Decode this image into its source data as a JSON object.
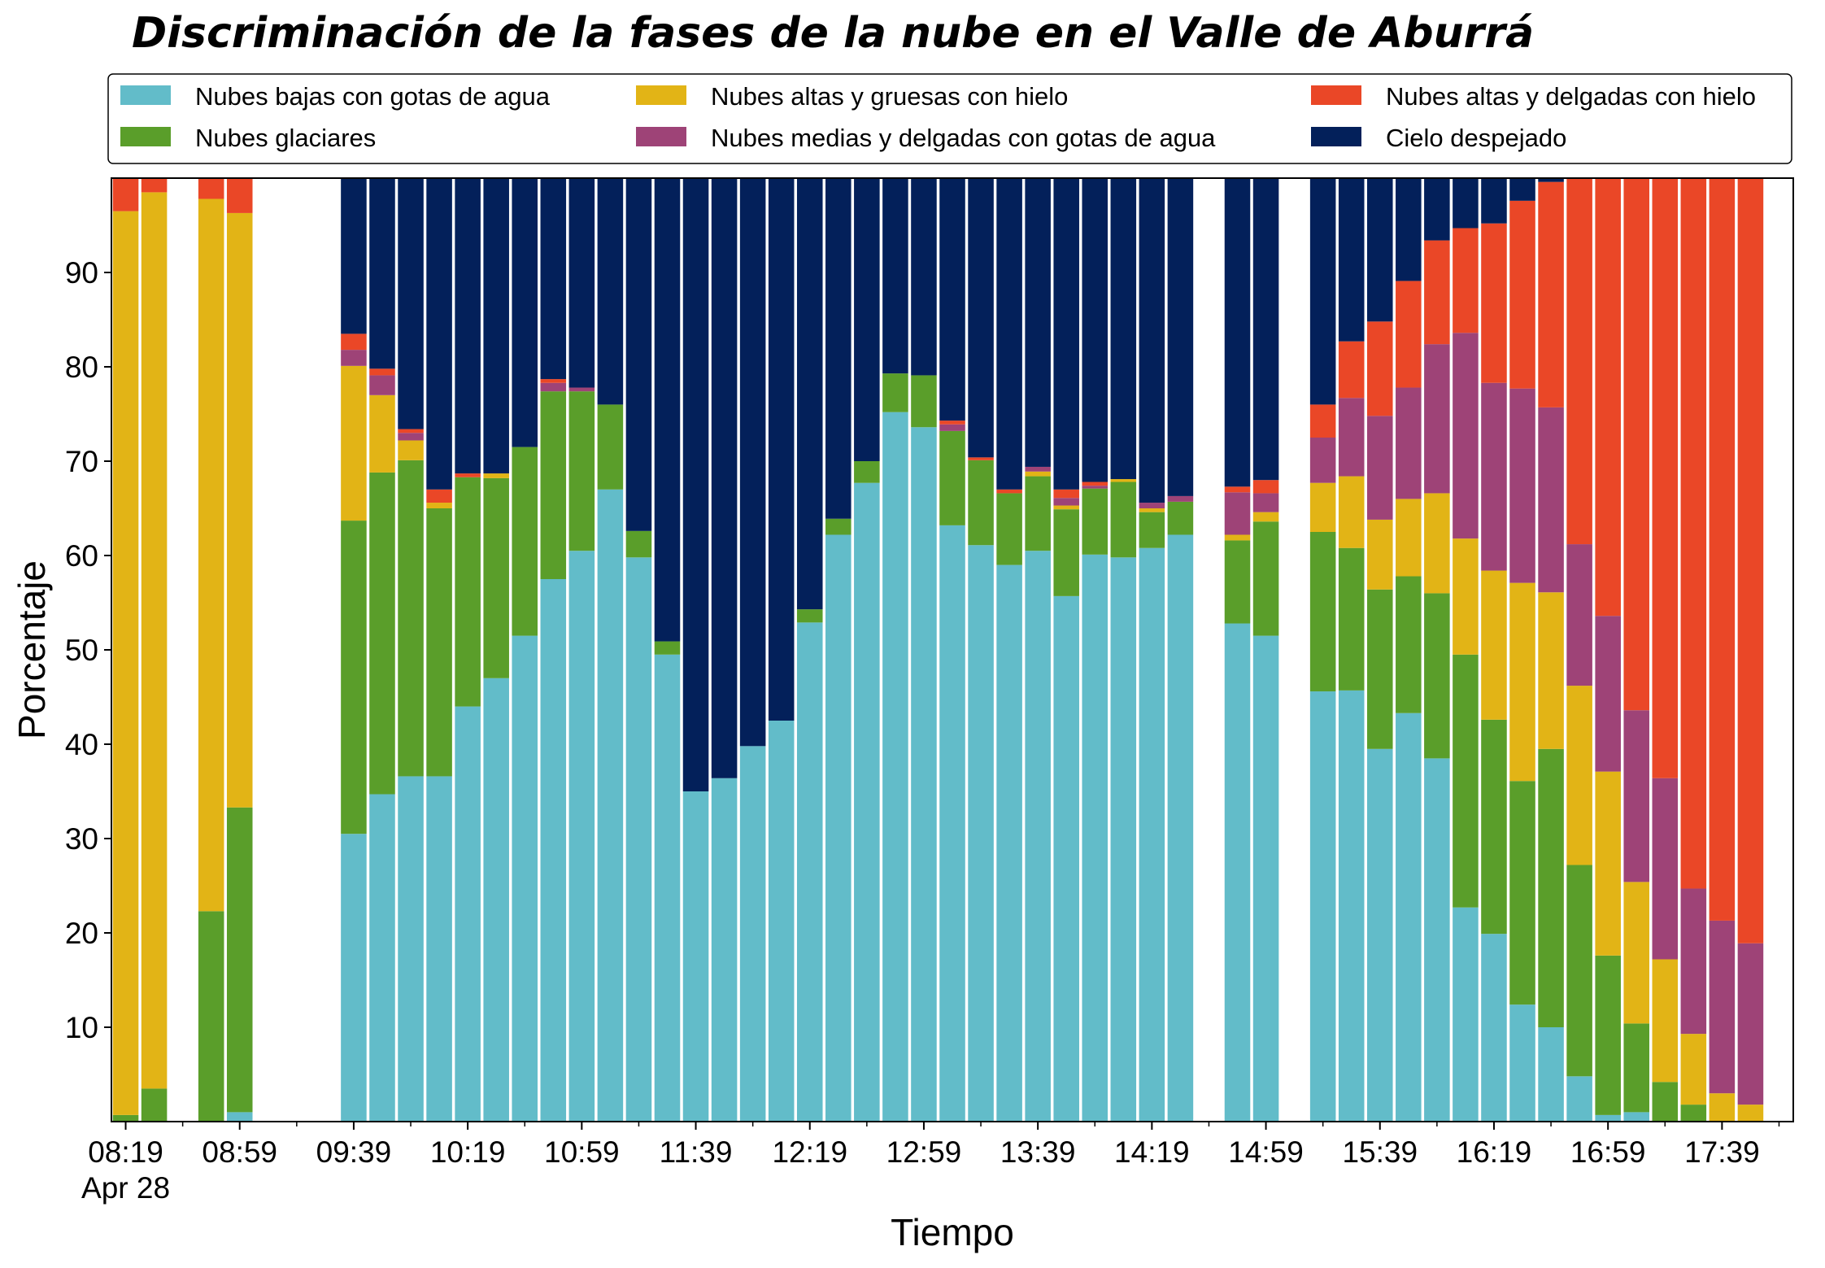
{
  "chart_data": {
    "type": "bar",
    "stacked": true,
    "title": "Discriminación de la fases de la nube en el Valle de Aburrá",
    "xlabel": "Tiempo",
    "ylabel": "Porcentaje",
    "ylim": [
      0,
      100
    ],
    "yticks": [
      10,
      20,
      30,
      40,
      50,
      60,
      70,
      80,
      90
    ],
    "xlim": [
      "08:14",
      "18:04"
    ],
    "bar_interval_minutes": 10,
    "xticks": [
      {
        "time": "08:19",
        "label": "08:19",
        "sublabel": "Apr 28"
      },
      {
        "time": "08:59",
        "label": "08:59"
      },
      {
        "time": "09:39",
        "label": "09:39"
      },
      {
        "time": "10:19",
        "label": "10:19"
      },
      {
        "time": "10:59",
        "label": "10:59"
      },
      {
        "time": "11:39",
        "label": "11:39"
      },
      {
        "time": "12:19",
        "label": "12:19"
      },
      {
        "time": "12:59",
        "label": "12:59"
      },
      {
        "time": "13:39",
        "label": "13:39"
      },
      {
        "time": "14:19",
        "label": "14:19"
      },
      {
        "time": "14:59",
        "label": "14:59"
      },
      {
        "time": "15:39",
        "label": "15:39"
      },
      {
        "time": "16:19",
        "label": "16:19"
      },
      {
        "time": "16:59",
        "label": "16:59"
      },
      {
        "time": "17:39",
        "label": "17:39"
      }
    ],
    "legend_position": "top, above plot, 3 columns",
    "grid": false,
    "times": [
      "08:19",
      "08:29",
      "08:49",
      "08:59",
      "09:39",
      "09:49",
      "09:59",
      "10:09",
      "10:19",
      "10:29",
      "10:39",
      "10:49",
      "10:59",
      "11:09",
      "11:19",
      "11:29",
      "11:39",
      "11:49",
      "11:59",
      "12:09",
      "12:19",
      "12:29",
      "12:39",
      "12:49",
      "12:59",
      "13:09",
      "13:19",
      "13:29",
      "13:39",
      "13:49",
      "13:59",
      "14:09",
      "14:19",
      "14:29",
      "14:49",
      "14:59",
      "15:19",
      "15:29",
      "15:39",
      "15:49",
      "15:59",
      "16:09",
      "16:19",
      "16:29",
      "16:39",
      "16:49",
      "16:59",
      "17:09",
      "17:19",
      "17:29",
      "17:39",
      "17:49"
    ],
    "series": [
      {
        "name": "Nubes bajas con gotas de agua",
        "color": "#62bcc9",
        "values": [
          0.0,
          0.0,
          0.0,
          1.0,
          30.5,
          34.7,
          36.6,
          36.6,
          44.0,
          47.0,
          51.5,
          57.5,
          60.5,
          67.0,
          59.8,
          49.5,
          35.0,
          36.4,
          39.8,
          42.5,
          52.9,
          62.2,
          67.7,
          75.2,
          73.6,
          63.2,
          61.1,
          59.0,
          60.5,
          55.7,
          60.1,
          59.8,
          60.8,
          62.2,
          52.8,
          51.5,
          45.6,
          45.7,
          39.5,
          43.3,
          38.5,
          22.7,
          19.9,
          12.4,
          10.0,
          4.8,
          0.7,
          1.0,
          0.0,
          0.0,
          0.0,
          0.0
        ]
      },
      {
        "name": "Nubes glaciares",
        "color": "#5a9e2a",
        "values": [
          0.7,
          3.5,
          22.3,
          32.3,
          33.2,
          34.1,
          33.5,
          28.4,
          24.3,
          21.2,
          20.0,
          19.9,
          16.9,
          9.0,
          2.8,
          1.4,
          0.0,
          0.0,
          0.0,
          0.0,
          1.4,
          1.7,
          2.3,
          4.1,
          5.5,
          10.0,
          9.0,
          7.6,
          7.9,
          9.2,
          7.0,
          8.0,
          3.8,
          3.5,
          8.8,
          12.1,
          16.9,
          15.1,
          16.9,
          14.5,
          17.5,
          26.8,
          22.7,
          23.7,
          29.5,
          22.4,
          16.9,
          9.4,
          4.2,
          1.8,
          0.0,
          0.0
        ]
      },
      {
        "name": "Nubes altas y gruesas con hielo",
        "color": "#e2b416",
        "values": [
          95.8,
          95.0,
          75.5,
          63.0,
          16.4,
          8.2,
          2.1,
          0.6,
          0.0,
          0.5,
          0.0,
          0.0,
          0.0,
          0.0,
          0.0,
          0.0,
          0.0,
          0.0,
          0.0,
          0.0,
          0.0,
          0.0,
          0.0,
          0.0,
          0.0,
          0.0,
          0.0,
          0.0,
          0.5,
          0.4,
          0.0,
          0.3,
          0.4,
          0.0,
          0.6,
          1.0,
          5.2,
          7.6,
          7.4,
          8.2,
          10.6,
          12.3,
          15.8,
          21.0,
          16.6,
          19.0,
          19.5,
          15.0,
          13.0,
          7.5,
          3.0,
          1.8
        ]
      },
      {
        "name": "Nubes medias y delgadas con gotas de agua",
        "color": "#9e4377",
        "values": [
          0.0,
          0.0,
          0.0,
          0.0,
          1.7,
          2.1,
          0.8,
          0.0,
          0.0,
          0.0,
          0.0,
          0.9,
          0.4,
          0.0,
          0.0,
          0.0,
          0.0,
          0.0,
          0.0,
          0.0,
          0.0,
          0.0,
          0.0,
          0.0,
          0.0,
          0.7,
          0.0,
          0.0,
          0.5,
          0.8,
          0.3,
          0.0,
          0.6,
          0.6,
          4.5,
          2.0,
          4.8,
          8.3,
          11.0,
          11.8,
          15.8,
          21.8,
          19.9,
          20.6,
          19.6,
          15.0,
          16.5,
          18.2,
          19.2,
          15.4,
          18.3,
          17.1
        ]
      },
      {
        "name": "Nubes altas y delgadas con hielo",
        "color": "#ea4727",
        "values": [
          3.5,
          1.5,
          2.2,
          3.7,
          1.7,
          0.7,
          0.4,
          1.4,
          0.4,
          0.0,
          0.0,
          0.4,
          0.0,
          0.0,
          0.0,
          0.0,
          0.0,
          0.0,
          0.0,
          0.0,
          0.0,
          0.0,
          0.0,
          0.0,
          0.0,
          0.4,
          0.3,
          0.4,
          0.0,
          0.9,
          0.4,
          0.0,
          0.0,
          0.0,
          0.6,
          1.4,
          3.5,
          6.0,
          10.0,
          11.3,
          11.0,
          11.1,
          16.9,
          19.9,
          23.9,
          38.8,
          46.4,
          56.4,
          63.6,
          75.3,
          78.7,
          81.1
        ]
      },
      {
        "name": "Cielo despejado",
        "color": "#03205a",
        "values": [
          0.0,
          0.0,
          0.0,
          0.0,
          16.5,
          20.2,
          26.6,
          33.0,
          31.3,
          31.3,
          28.5,
          21.3,
          22.2,
          24.0,
          37.4,
          49.1,
          65.0,
          63.6,
          60.2,
          57.5,
          45.7,
          36.1,
          30.0,
          20.7,
          20.9,
          25.7,
          29.6,
          33.0,
          30.6,
          33.0,
          32.2,
          31.9,
          34.4,
          33.7,
          32.7,
          32.0,
          24.0,
          17.3,
          15.2,
          10.9,
          6.6,
          5.3,
          4.8,
          2.4,
          0.4,
          0.0,
          0.0,
          0.0,
          0.0,
          0.0,
          0.0,
          0.0
        ]
      }
    ]
  }
}
